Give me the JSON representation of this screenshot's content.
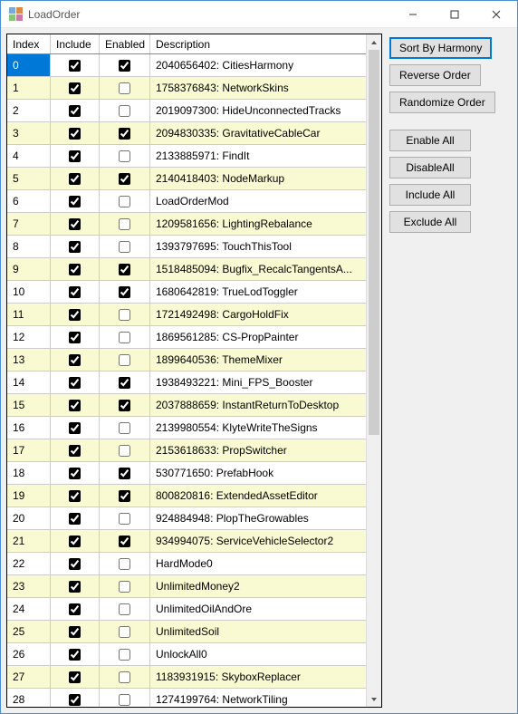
{
  "window": {
    "title": "LoadOrder",
    "icon_colors": [
      "#7aa8d8",
      "#d88a4a",
      "#8ac47a",
      "#c97aa8"
    ]
  },
  "grid": {
    "headers": {
      "index": "Index",
      "include": "Include",
      "enabled": "Enabled",
      "description": "Description"
    },
    "selected_index": 0,
    "rows": [
      {
        "index": "0",
        "include": true,
        "enabled": true,
        "description": "2040656402: CitiesHarmony"
      },
      {
        "index": "1",
        "include": true,
        "enabled": false,
        "description": "1758376843: NetworkSkins"
      },
      {
        "index": "2",
        "include": true,
        "enabled": false,
        "description": "2019097300: HideUnconnectedTracks"
      },
      {
        "index": "3",
        "include": true,
        "enabled": true,
        "description": "2094830335: GravitativeCableCar"
      },
      {
        "index": "4",
        "include": true,
        "enabled": false,
        "description": "2133885971: FindIt"
      },
      {
        "index": "5",
        "include": true,
        "enabled": true,
        "description": "2140418403: NodeMarkup"
      },
      {
        "index": "6",
        "include": true,
        "enabled": false,
        "description": "LoadOrderMod"
      },
      {
        "index": "7",
        "include": true,
        "enabled": false,
        "description": "1209581656: LightingRebalance"
      },
      {
        "index": "8",
        "include": true,
        "enabled": false,
        "description": "1393797695: TouchThisTool"
      },
      {
        "index": "9",
        "include": true,
        "enabled": true,
        "description": "1518485094: Bugfix_RecalcTangentsA..."
      },
      {
        "index": "10",
        "include": true,
        "enabled": true,
        "description": "1680642819: TrueLodToggler"
      },
      {
        "index": "11",
        "include": true,
        "enabled": false,
        "description": "1721492498: CargoHoldFix"
      },
      {
        "index": "12",
        "include": true,
        "enabled": false,
        "description": "1869561285: CS-PropPainter"
      },
      {
        "index": "13",
        "include": true,
        "enabled": false,
        "description": "1899640536: ThemeMixer"
      },
      {
        "index": "14",
        "include": true,
        "enabled": true,
        "description": "1938493221: Mini_FPS_Booster"
      },
      {
        "index": "15",
        "include": true,
        "enabled": true,
        "description": "2037888659: InstantReturnToDesktop"
      },
      {
        "index": "16",
        "include": true,
        "enabled": false,
        "description": "2139980554: KlyteWriteTheSigns"
      },
      {
        "index": "17",
        "include": true,
        "enabled": false,
        "description": "2153618633: PropSwitcher"
      },
      {
        "index": "18",
        "include": true,
        "enabled": true,
        "description": "530771650: PrefabHook"
      },
      {
        "index": "19",
        "include": true,
        "enabled": true,
        "description": "800820816: ExtendedAssetEditor"
      },
      {
        "index": "20",
        "include": true,
        "enabled": false,
        "description": "924884948: PlopTheGrowables"
      },
      {
        "index": "21",
        "include": true,
        "enabled": true,
        "description": "934994075: ServiceVehicleSelector2"
      },
      {
        "index": "22",
        "include": true,
        "enabled": false,
        "description": "HardMode0"
      },
      {
        "index": "23",
        "include": true,
        "enabled": false,
        "description": "UnlimitedMoney2"
      },
      {
        "index": "24",
        "include": true,
        "enabled": false,
        "description": "UnlimitedOilAndOre"
      },
      {
        "index": "25",
        "include": true,
        "enabled": false,
        "description": "UnlimitedSoil"
      },
      {
        "index": "26",
        "include": true,
        "enabled": false,
        "description": "UnlockAll0"
      },
      {
        "index": "27",
        "include": true,
        "enabled": false,
        "description": "1183931915: SkyboxReplacer"
      },
      {
        "index": "28",
        "include": true,
        "enabled": false,
        "description": "1274199764: NetworkTiling"
      }
    ]
  },
  "buttons": {
    "sort_by_harmony": "Sort By Harmony",
    "reverse_order": "Reverse Order",
    "randomize_order": "Randomize Order",
    "enable_all": "Enable All",
    "disable_all": "DisableAll",
    "include_all": "Include All",
    "exclude_all": "Exclude All"
  },
  "colors": {
    "odd_row": "#fafad2",
    "even_row": "#ffffff",
    "selection": "#0078d7",
    "window_border": "#4a90d6",
    "button_bg": "#e1e1e1",
    "button_border": "#adadad"
  }
}
